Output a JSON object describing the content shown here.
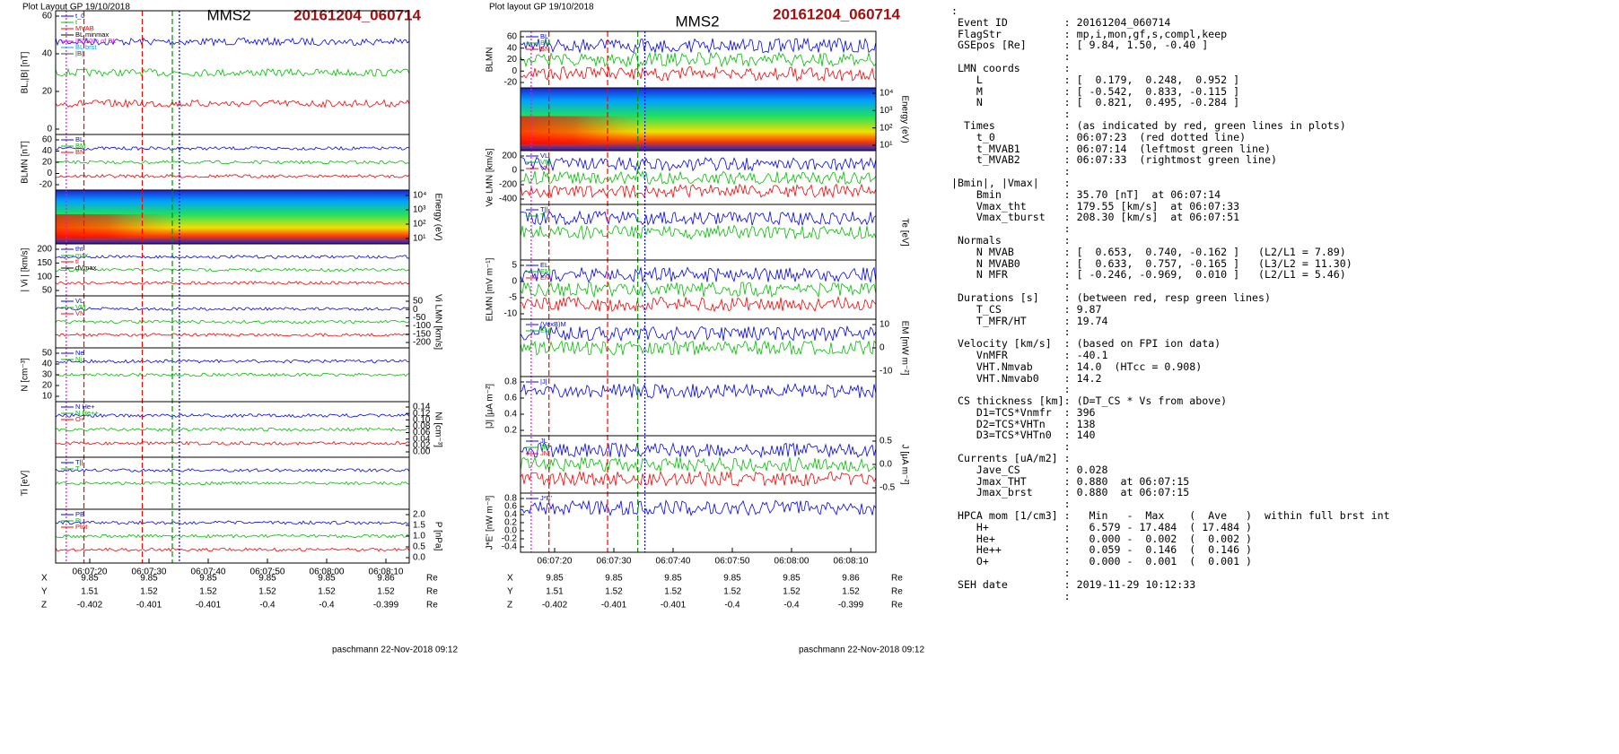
{
  "left": {
    "header": "Plot Layout GP 19/10/2018",
    "title": "MMS2",
    "event": "20161204_060714",
    "panels": [
      {
        "ylabel": "BL,|B| [nT]",
        "side": "left",
        "yticks": [
          "60",
          "40",
          "20",
          "0"
        ],
        "legend": [
          "t_0",
          "t",
          "MVAB",
          "BL minmax",
          "|B| 50% of BL",
          "BL brst",
          "|B|"
        ]
      },
      {
        "ylabel": "BLMN [nT]",
        "side": "left",
        "yticks": [
          "60",
          "40",
          "20",
          "0",
          "-20"
        ],
        "legend": [
          "BL",
          "BM",
          "BN"
        ]
      },
      {
        "ylabel": "Energy (eV)",
        "side": "right",
        "yticks": [
          "10⁴",
          "10³",
          "10²",
          "10¹"
        ],
        "legend": []
      },
      {
        "ylabel": "| Vi | [km/s]",
        "side": "left",
        "yticks": [
          "200",
          "150",
          "100",
          "50"
        ],
        "legend": [
          "tht",
          "max",
          "tl",
          "dVmax"
        ]
      },
      {
        "ylabel": "Vi LMN [km/s]",
        "side": "right",
        "yticks": [
          "50",
          "0",
          "-50",
          "-100",
          "-150",
          "-200"
        ],
        "legend": [
          "VL",
          "VM",
          "VN"
        ]
      },
      {
        "ylabel": "N [cm⁻³]",
        "side": "left",
        "yticks": [
          "50",
          "40",
          "30",
          "20",
          "10"
        ],
        "legend": [
          "Ne",
          "Ni"
        ]
      },
      {
        "ylabel": "Ni [cm⁻³]",
        "side": "right",
        "yticks": [
          "0.14",
          "0.12",
          "0.10",
          "0.08",
          "0.06",
          "0.04",
          "0.02",
          "0.00"
        ],
        "legend": [
          "N He+",
          "N He++",
          "O+"
        ]
      },
      {
        "ylabel": "Ti [eV]",
        "side": "left",
        "yticks": [],
        "legend": [
          "T||",
          "T"
        ]
      },
      {
        "ylabel": "P [nPa]",
        "side": "right",
        "yticks": [
          "2.0",
          "1.5",
          "1.0",
          "0.5",
          "0.0"
        ],
        "legend": [
          "PB",
          "Pi",
          "Ptot"
        ]
      }
    ],
    "xticks": [
      "06:07:20",
      "06:07:30",
      "06:07:40",
      "06:07:50",
      "06:08:00",
      "06:08:10"
    ],
    "table": [
      [
        "X",
        "9.85",
        "9.85",
        "9.85",
        "9.85",
        "9.85",
        "9.86",
        "Re"
      ],
      [
        "Y",
        "1.51",
        "1.52",
        "1.52",
        "1.52",
        "1.52",
        "1.52",
        "Re"
      ],
      [
        "Z",
        "-0.402",
        "-0.401",
        "-0.401",
        "-0.4",
        "-0.4",
        "-0.399",
        "Re"
      ]
    ],
    "footer": "paschmann 22-Nov-2018 09:12"
  },
  "middle": {
    "header": "Plot layout GP 19/10/2018",
    "title": "MMS2",
    "event": "20161204_060714",
    "panels": [
      {
        "ylabel": "BLMN",
        "side": "left",
        "yticks": [
          "60",
          "40",
          "20",
          "0",
          "-20"
        ],
        "legend": [
          "BL",
          "BM",
          "BN"
        ]
      },
      {
        "ylabel": "Energy (eV)",
        "side": "right",
        "yticks": [
          "10⁴",
          "10³",
          "10²",
          "10¹"
        ],
        "legend": []
      },
      {
        "ylabel": "Ve LMN [km/s]",
        "side": "left",
        "yticks": [
          "200",
          "0",
          "-200",
          "-400"
        ],
        "legend": [
          "VL",
          "VM",
          "VN"
        ]
      },
      {
        "ylabel": "Te [eV]",
        "side": "right",
        "yticks": [],
        "legend": [
          "T||",
          "T"
        ]
      },
      {
        "ylabel": "ELMN [mV m⁻¹]",
        "side": "left",
        "yticks": [
          "5",
          "0",
          "-5",
          "-10"
        ],
        "legend": [
          "EL",
          "EM",
          "EN"
        ]
      },
      {
        "ylabel": "EM [mW m⁻²]",
        "side": "right",
        "yticks": [
          "10",
          "0",
          "-10"
        ],
        "legend": [
          "(VexB)M",
          "EM"
        ]
      },
      {
        "ylabel": "|J| [μA m⁻²]",
        "side": "left",
        "yticks": [
          "0.8",
          "0.6",
          "0.4",
          "0.2"
        ],
        "legend": [
          "|J|"
        ]
      },
      {
        "ylabel": "J [μA m⁻²]",
        "side": "right",
        "yticks": [
          "0.5",
          "0.0",
          "-0.5"
        ],
        "legend": [
          "JL",
          "JM",
          "JN"
        ]
      },
      {
        "ylabel": "J*E' [nW m⁻³]",
        "side": "left",
        "yticks": [
          "0.8",
          "0.6",
          "0.4",
          "0.2",
          "0.0",
          "-0.2",
          "-0.4"
        ],
        "legend": [
          "J*E'"
        ]
      }
    ],
    "xticks": [
      "06:07:20",
      "06:07:30",
      "06:07:40",
      "06:07:50",
      "06:08:00",
      "06:08:10"
    ],
    "table": [
      [
        "X",
        "9.85",
        "9.85",
        "9.85",
        "9.85",
        "9.85",
        "9.86",
        "Re"
      ],
      [
        "Y",
        "1.51",
        "1.52",
        "1.52",
        "1.52",
        "1.52",
        "1.52",
        "Re"
      ],
      [
        "Z",
        "-0.402",
        "-0.401",
        "-0.401",
        "-0.4",
        "-0.4",
        "-0.399",
        "Re"
      ]
    ],
    "footer": "paschmann 22-Nov-2018 09:12"
  },
  "info": [
    ":",
    " Event ID         : 20161204_060714",
    " FlagStr          : mp,i,mon,gf,s,compl,keep",
    " GSEpos [Re]      : [ 9.84, 1.50, -0.40 ]",
    "                  :",
    " LMN coords       :",
    "    L             : [  0.179,  0.248,  0.952 ]",
    "    M             : [ -0.542,  0.833, -0.115 ]",
    "    N             : [  0.821,  0.495, -0.284 ]",
    "                  :",
    "  Times           : (as indicated by red, green lines in plots)",
    "    t_0           : 06:07:23  (red dotted line)",
    "    t_MVAB1       : 06:07:14  (leftmost green line)",
    "    t_MVAB2       : 06:07:33  (rightmost green line)",
    "                  :",
    "|Bmin|, |Vmax|    :",
    "    Bmin          : 35.70 [nT]  at 06:07:14",
    "    Vmax_tht      : 179.55 [km/s]  at 06:07:33",
    "    Vmax_tburst   : 208.30 [km/s]  at 06:07:51",
    "                  :",
    " Normals          :",
    "    N MVAB        : [  0.653,  0.740, -0.162 ]   (L2/L1 = 7.89)",
    "    N MVAB0       : [  0.633,  0.757, -0.165 ]   (L3/L2 = 11.30)",
    "    N MFR         : [ -0.246, -0.969,  0.010 ]   (L2/L1 = 5.46)",
    "                  :",
    " Durations [s]    : (between red, resp green lines)",
    "    T_CS          : 9.87",
    "    T_MFR/HT      : 19.74",
    "                  :",
    " Velocity [km/s]  : (based on FPI ion data)",
    "    VnMFR         : -40.1",
    "    VHT.Nmvab     : 14.0  (HTcc = 0.908)",
    "    VHT.Nmvab0    : 14.2",
    "                  :",
    " CS thickness [km]: (D=T_CS * Vs from above)",
    "    D1=TCS*Vnmfr  : 396",
    "    D2=TCS*VHTn   : 138",
    "    D3=TCS*VHTn0  : 140",
    "                  :",
    " Currents [uA/m2] :",
    "    Jave_CS       : 0.028",
    "    Jmax_THT      : 0.880  at 06:07:15",
    "    Jmax_brst     : 0.880  at 06:07:15",
    "                  :",
    " HPCA mom [1/cm3] :   Min   -  Max    (  Ave   )  within full brst int",
    "    H+            :   6.579 - 17.484  ( 17.484 )",
    "    He+           :   0.000 -  0.002  (  0.002 )",
    "    He++          :   0.059 -  0.146  (  0.146 )",
    "    O+            :   0.000 -  0.001  (  0.001 )",
    "                  :",
    " SEH date         : 2019-11-29 10:12:33",
    "                  :"
  ]
}
